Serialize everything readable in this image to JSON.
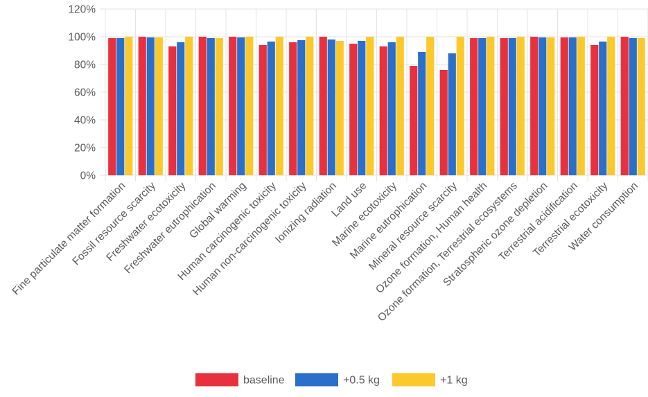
{
  "chart_data": {
    "type": "bar",
    "title": "",
    "xlabel": "",
    "ylabel": "",
    "ylim": [
      0,
      120
    ],
    "yticks": [
      0,
      20,
      40,
      60,
      80,
      100,
      120
    ],
    "ytick_labels": [
      "0%",
      "20%",
      "40%",
      "60%",
      "80%",
      "100%",
      "120%"
    ],
    "grid": true,
    "legend_position": "bottom-center",
    "categories": [
      "Fine particulate matter formation",
      "Fossil resource scarcity",
      "Freshwater ecotoxicity",
      "Freshwater eutrophication",
      "Global warming",
      "Human carcinogenic toxicity",
      "Human non-carcinogenic toxicity",
      "Ionizing radiation",
      "Land use",
      "Marine ecotoxicity",
      "Marine eutrophication",
      "Mineral resource scarcity",
      "Ozone formation, Human health",
      "Ozone formation, Terrestrial ecosystems",
      "Stratospheric ozone depletion",
      "Terrestrial acidification",
      "Terrestrial ecotoxicity",
      "Water consumption"
    ],
    "series": [
      {
        "name": "baseline",
        "color": "#e8313e",
        "values": [
          99,
          100,
          93,
          100,
          100,
          94,
          96,
          100,
          95,
          93,
          79,
          76,
          99,
          99,
          100,
          99.5,
          94,
          100
        ]
      },
      {
        "name": "+0.5 kg",
        "color": "#2a6fc9",
        "values": [
          99,
          99.5,
          96,
          99,
          99.5,
          96.5,
          97.5,
          98,
          97,
          96,
          89,
          88,
          99,
          99,
          99.5,
          99.5,
          96.5,
          99
        ]
      },
      {
        "name": "+1 kg",
        "color": "#fcc92d",
        "values": [
          100,
          99.5,
          100,
          99,
          100,
          100,
          100,
          97,
          100,
          100,
          100,
          100,
          100,
          100,
          99.5,
          100,
          100,
          99
        ]
      }
    ]
  }
}
